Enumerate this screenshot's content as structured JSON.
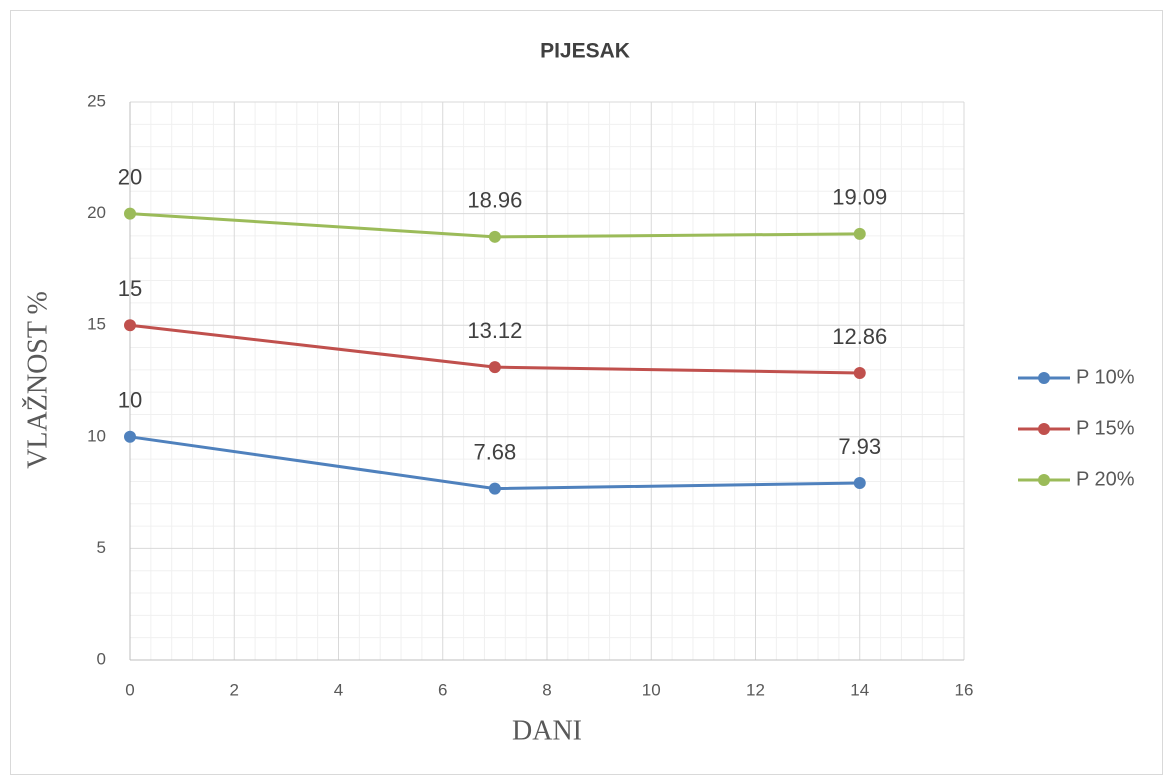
{
  "chart_data": {
    "type": "line",
    "title": "PIJESAK",
    "x_label": "DANI",
    "y_label": "VLAŽNOST %",
    "x": [
      0,
      7,
      14
    ],
    "series": [
      {
        "name": "P 10%",
        "color": "#4f81bd",
        "values": [
          10,
          7.68,
          7.93
        ]
      },
      {
        "name": "P 15%",
        "color": "#c0504d",
        "values": [
          15,
          13.12,
          12.86
        ]
      },
      {
        "name": "P 20%",
        "color": "#9bbb59",
        "values": [
          20,
          18.96,
          19.09
        ]
      }
    ],
    "xlim": [
      0,
      16
    ],
    "xticks": [
      0,
      2,
      4,
      6,
      8,
      10,
      12,
      14,
      16
    ],
    "ylim": [
      0,
      25
    ],
    "yticks": [
      0,
      5,
      10,
      15,
      20,
      25
    ],
    "grid": true,
    "minor_divisions": 5,
    "data_labels": true,
    "legend": "right"
  }
}
